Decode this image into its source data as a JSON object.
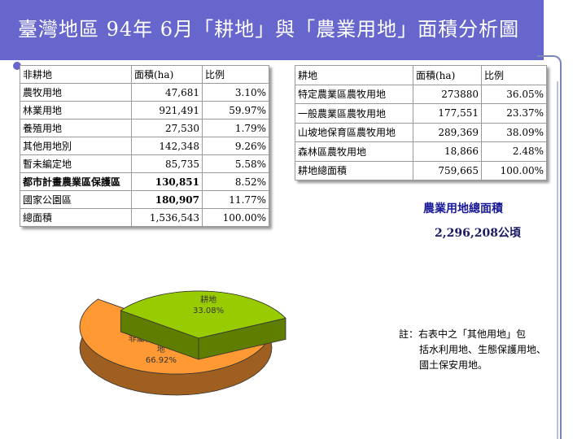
{
  "title": "臺灣地區 94年 6月「耕地」與「農業用地」面積分析圖",
  "left_table": {
    "headers": [
      "非耕地",
      "面積(ha)",
      "比例"
    ],
    "rows": [
      {
        "name": "農牧用地",
        "area": "47,681",
        "ratio": "3.10%",
        "bold": false
      },
      {
        "name": "林業用地",
        "area": "921,491",
        "ratio": "59.97%",
        "bold": false
      },
      {
        "name": "養殖用地",
        "area": "27,530",
        "ratio": "1.79%",
        "bold": false
      },
      {
        "name": "其他用地別",
        "area": "142,348",
        "ratio": "9.26%",
        "bold": false
      },
      {
        "name": "暫未編定地",
        "area": "85,735",
        "ratio": "5.58%",
        "bold": false
      },
      {
        "name": "都市計畫農業區保護區",
        "area": "130,851",
        "ratio": "8.52%",
        "bold": true
      },
      {
        "name": "國家公園區",
        "area": "180,907",
        "ratio": "11.77%",
        "bold": true
      },
      {
        "name": "總面積",
        "area": "1,536,543",
        "ratio": "100.00%",
        "bold": false
      }
    ]
  },
  "right_table": {
    "headers": [
      "耕地",
      "面積(ha)",
      "比例"
    ],
    "rows": [
      {
        "name": "特定農業區農牧用地",
        "area": "273880",
        "ratio": "36.05%"
      },
      {
        "name": "一般農業區農牧用地",
        "area": "177,551",
        "ratio": "23.37%"
      },
      {
        "name": "山坡地保育區農牧用地",
        "area": "289,369",
        "ratio": "38.09%"
      },
      {
        "name": "森林區農牧用地",
        "area": "18,866",
        "ratio": "2.48%"
      },
      {
        "name": "耕地總面積",
        "area": "759,665",
        "ratio": "100.00%"
      }
    ]
  },
  "total": {
    "title": "農業用地總面積",
    "value": "2,296,208公頃"
  },
  "note": {
    "head": "註：右表中之「其他用地」包",
    "lines": [
      "括水利用地、生態保護用地、",
      "國土保安用地。"
    ]
  },
  "chart_data": {
    "type": "pie",
    "slices": [
      {
        "label_lines": [
          "非屬耕地之農業用",
          "地"
        ],
        "percent_label": "66.92%",
        "value": 66.92,
        "color": "#ff9933"
      },
      {
        "label_lines": [
          "耕地"
        ],
        "percent_label": "33.08%",
        "value": 33.08,
        "color": "#99cc00"
      }
    ]
  }
}
